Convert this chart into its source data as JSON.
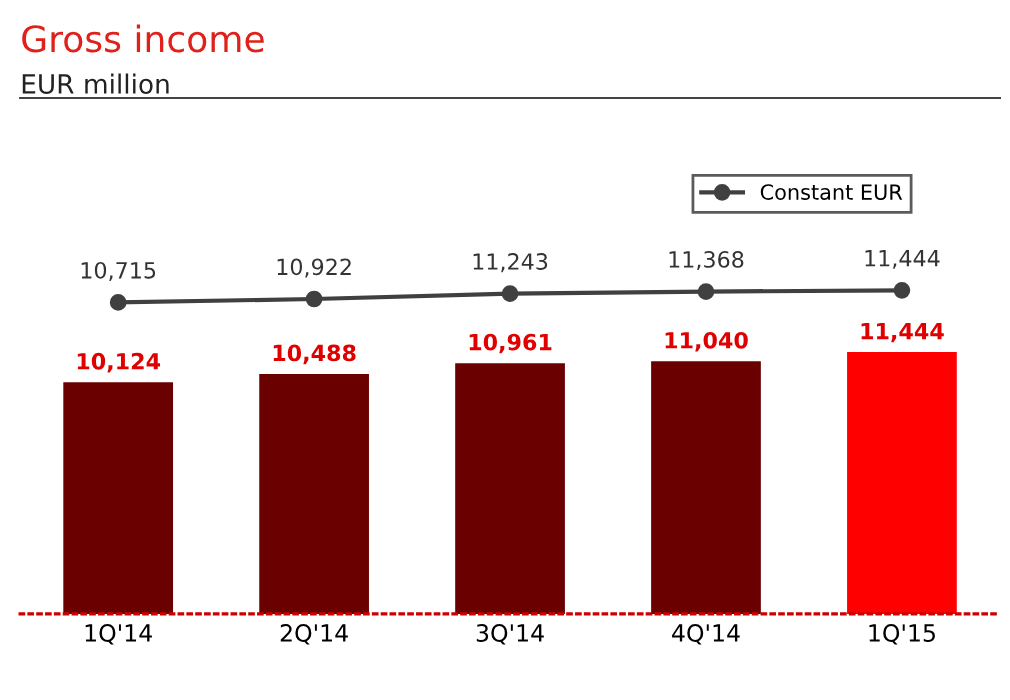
{
  "chart_data": {
    "type": "bar",
    "title": "Gross income",
    "subtitle": "EUR million",
    "categories": [
      "1Q'14",
      "2Q'14",
      "3Q'14",
      "4Q'14",
      "1Q'15"
    ],
    "tick_labels": "x",
    "ylim": [
      0,
      22550
    ],
    "y2lim": [
      -8000,
      23000
    ],
    "series": [
      {
        "colors": [
          "#6b0000",
          "#6b0000",
          "#6b0000",
          "#6b0000",
          "#ff0000"
        ],
        "values": [
          10124,
          10488,
          10961,
          11040,
          11444
        ],
        "value_labels": [
          "10,124",
          "10,488",
          "10,961",
          "11,040",
          "11,444"
        ]
      },
      {
        "type": "line",
        "name": "Constant EUR",
        "axis": "y2",
        "color": "#404040",
        "marker": "circle",
        "values": [
          10715,
          10922,
          11243,
          11368,
          11444
        ],
        "value_labels": [
          "10,715",
          "10,922",
          "11,243",
          "11,368",
          "11,444"
        ]
      }
    ],
    "legend": "top right"
  }
}
